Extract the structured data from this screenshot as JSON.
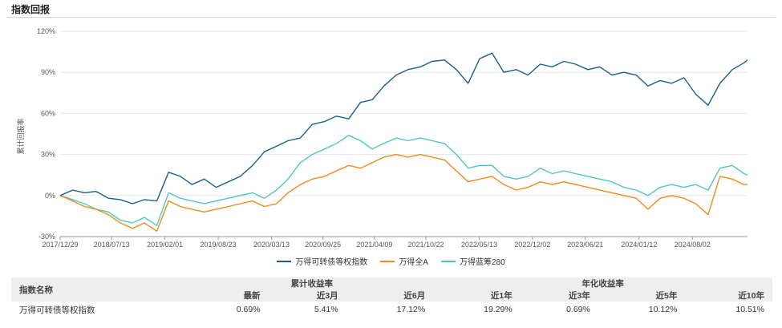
{
  "panel": {
    "title": "指数回报"
  },
  "colors": {
    "series1": "#1a5f8c",
    "series2": "#f28a1e",
    "series3": "#4fc6c0",
    "grid": "#e6e6e6",
    "axis": "#999999"
  },
  "chart_data": {
    "type": "line",
    "ylabel": "累计回报率",
    "ylim": [
      -30,
      120
    ],
    "y_ticks": [
      -30,
      0,
      30,
      60,
      90,
      120
    ],
    "y_tick_labels": [
      "-30%",
      "0%",
      "30%",
      "60%",
      "90%",
      "120%"
    ],
    "x_range": [
      "2017-12-29",
      "2025-02-28"
    ],
    "x_tick_labels": [
      "2017/12/29",
      "2018/07/13",
      "2019/02/01",
      "2019/08/23",
      "2020/03/13",
      "2020/09/25",
      "2021/04/09",
      "2021/10/22",
      "2022/05/13",
      "2022/12/02",
      "2023/06/21",
      "2024/01/12",
      "2024/08/02"
    ],
    "grid": "horizontal",
    "legend_position": "bottom",
    "x": [
      "2017-12-29",
      "2018-02-15",
      "2018-04-01",
      "2018-05-15",
      "2018-07-01",
      "2018-08-15",
      "2018-10-01",
      "2018-11-15",
      "2019-01-01",
      "2019-02-15",
      "2019-04-01",
      "2019-05-15",
      "2019-07-01",
      "2019-08-15",
      "2019-10-01",
      "2019-11-15",
      "2020-01-01",
      "2020-02-15",
      "2020-04-01",
      "2020-05-15",
      "2020-07-01",
      "2020-08-15",
      "2020-10-01",
      "2020-11-15",
      "2021-01-01",
      "2021-02-15",
      "2021-04-01",
      "2021-05-15",
      "2021-07-01",
      "2021-08-15",
      "2021-10-01",
      "2021-11-15",
      "2022-01-01",
      "2022-02-15",
      "2022-04-01",
      "2022-05-15",
      "2022-07-01",
      "2022-08-15",
      "2022-10-01",
      "2022-11-15",
      "2023-01-01",
      "2023-02-15",
      "2023-04-01",
      "2023-05-15",
      "2023-07-01",
      "2023-08-15",
      "2023-10-01",
      "2023-11-15",
      "2024-01-01",
      "2024-02-15",
      "2024-04-01",
      "2024-05-15",
      "2024-07-01",
      "2024-08-15",
      "2024-10-01",
      "2024-11-15",
      "2025-01-01",
      "2025-02-15",
      "2025-02-28"
    ],
    "series": [
      {
        "name": "万得可转债等权指数",
        "values": [
          0,
          4,
          2,
          3,
          -2,
          -3,
          -6,
          -3,
          -4,
          17,
          14,
          8,
          12,
          6,
          10,
          14,
          22,
          32,
          36,
          40,
          42,
          52,
          54,
          58,
          56,
          68,
          70,
          80,
          88,
          92,
          94,
          98,
          99,
          92,
          82,
          100,
          104,
          90,
          92,
          88,
          96,
          94,
          98,
          96,
          92,
          94,
          88,
          90,
          88,
          80,
          84,
          82,
          86,
          74,
          66,
          82,
          92,
          97,
          99
        ]
      },
      {
        "name": "万得全A",
        "values": [
          0,
          -4,
          -8,
          -10,
          -14,
          -20,
          -24,
          -20,
          -26,
          -4,
          -8,
          -10,
          -12,
          -10,
          -8,
          -6,
          -4,
          -8,
          -6,
          2,
          8,
          12,
          14,
          18,
          22,
          20,
          24,
          28,
          30,
          28,
          30,
          28,
          26,
          18,
          10,
          12,
          14,
          8,
          4,
          6,
          10,
          8,
          10,
          8,
          6,
          4,
          2,
          0,
          -2,
          -10,
          -2,
          0,
          -2,
          -6,
          -14,
          14,
          12,
          8,
          8
        ]
      },
      {
        "name": "万得蓝筹280",
        "values": [
          0,
          -3,
          -6,
          -10,
          -12,
          -18,
          -20,
          -16,
          -22,
          2,
          -2,
          -4,
          -6,
          -4,
          -2,
          0,
          2,
          -2,
          4,
          12,
          24,
          30,
          34,
          38,
          44,
          40,
          34,
          38,
          42,
          40,
          42,
          40,
          38,
          30,
          20,
          22,
          22,
          14,
          12,
          14,
          20,
          16,
          18,
          16,
          14,
          12,
          10,
          6,
          4,
          0,
          6,
          8,
          6,
          8,
          4,
          20,
          22,
          16,
          15
        ]
      }
    ]
  },
  "table": {
    "name_header": "指数名称",
    "group_cumulative": "累计收益率",
    "group_annual": "年化收益率",
    "columns": [
      "最新",
      "近3月",
      "近6月",
      "近1年",
      "近3年",
      "近5年",
      "近10年"
    ],
    "rows": [
      {
        "name": "万得可转债等权指数",
        "values": [
          "0.69%",
          "5.41%",
          "17.12%",
          "19.29%",
          "0.69%",
          "10.12%",
          "10.51%"
        ]
      }
    ]
  }
}
